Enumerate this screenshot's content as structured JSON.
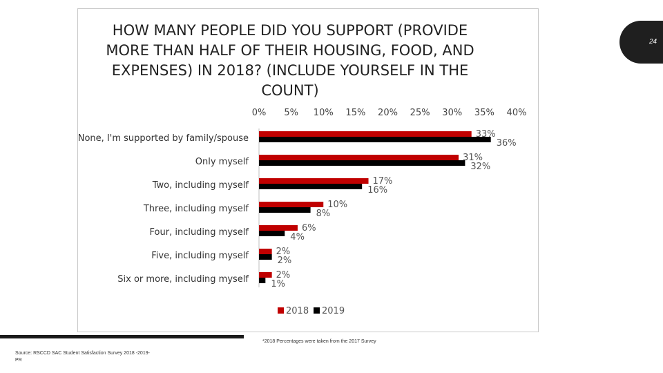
{
  "page": {
    "number": "24"
  },
  "footnote": "*2018 Percentages were taken from the 2017 Survey",
  "source": "Source: RSCCD SAC Student Satisfaction Survey 2018 -2019-PR",
  "colors": {
    "2018": "#c00000",
    "2019": "#000000"
  },
  "chart_data": {
    "type": "bar",
    "orientation": "horizontal",
    "title": "HOW MANY PEOPLE DID YOU SUPPORT (PROVIDE MORE THAN HALF OF THEIR HOUSING, FOOD, AND EXPENSES) IN 2018? (INCLUDE YOURSELF IN THE COUNT)",
    "title_lines": [
      "HOW MANY PEOPLE DID YOU SUPPORT (PROVIDE",
      "MORE THAN HALF OF THEIR HOUSING, FOOD, AND",
      "EXPENSES) IN 2018? (INCLUDE YOURSELF IN THE",
      "COUNT)"
    ],
    "categories": [
      "None, I'm supported by family/spouse",
      "Only myself",
      "Two, including myself",
      "Three, including myself",
      "Four, including myself",
      "Five, including myself",
      "Six or more, including myself"
    ],
    "series": [
      {
        "name": "2018",
        "values": [
          33,
          31,
          17,
          10,
          6,
          2,
          2
        ],
        "labels": [
          "33%",
          "31%",
          "17%",
          "10%",
          "6%",
          "2%",
          "2%"
        ]
      },
      {
        "name": "2019",
        "values": [
          36,
          32,
          16,
          8,
          4,
          2,
          1
        ],
        "labels": [
          "36%",
          "32%",
          "16%",
          "8%",
          "4%",
          "2%",
          "1%"
        ]
      }
    ],
    "xlim": [
      0,
      40
    ],
    "ticks": [
      "0%",
      "5%",
      "10%",
      "15%",
      "20%",
      "25%",
      "30%",
      "35%",
      "40%"
    ],
    "tick_values": [
      0,
      5,
      10,
      15,
      20,
      25,
      30,
      35,
      40
    ],
    "axis_position": "top",
    "grid": false,
    "legend": "bottom"
  }
}
